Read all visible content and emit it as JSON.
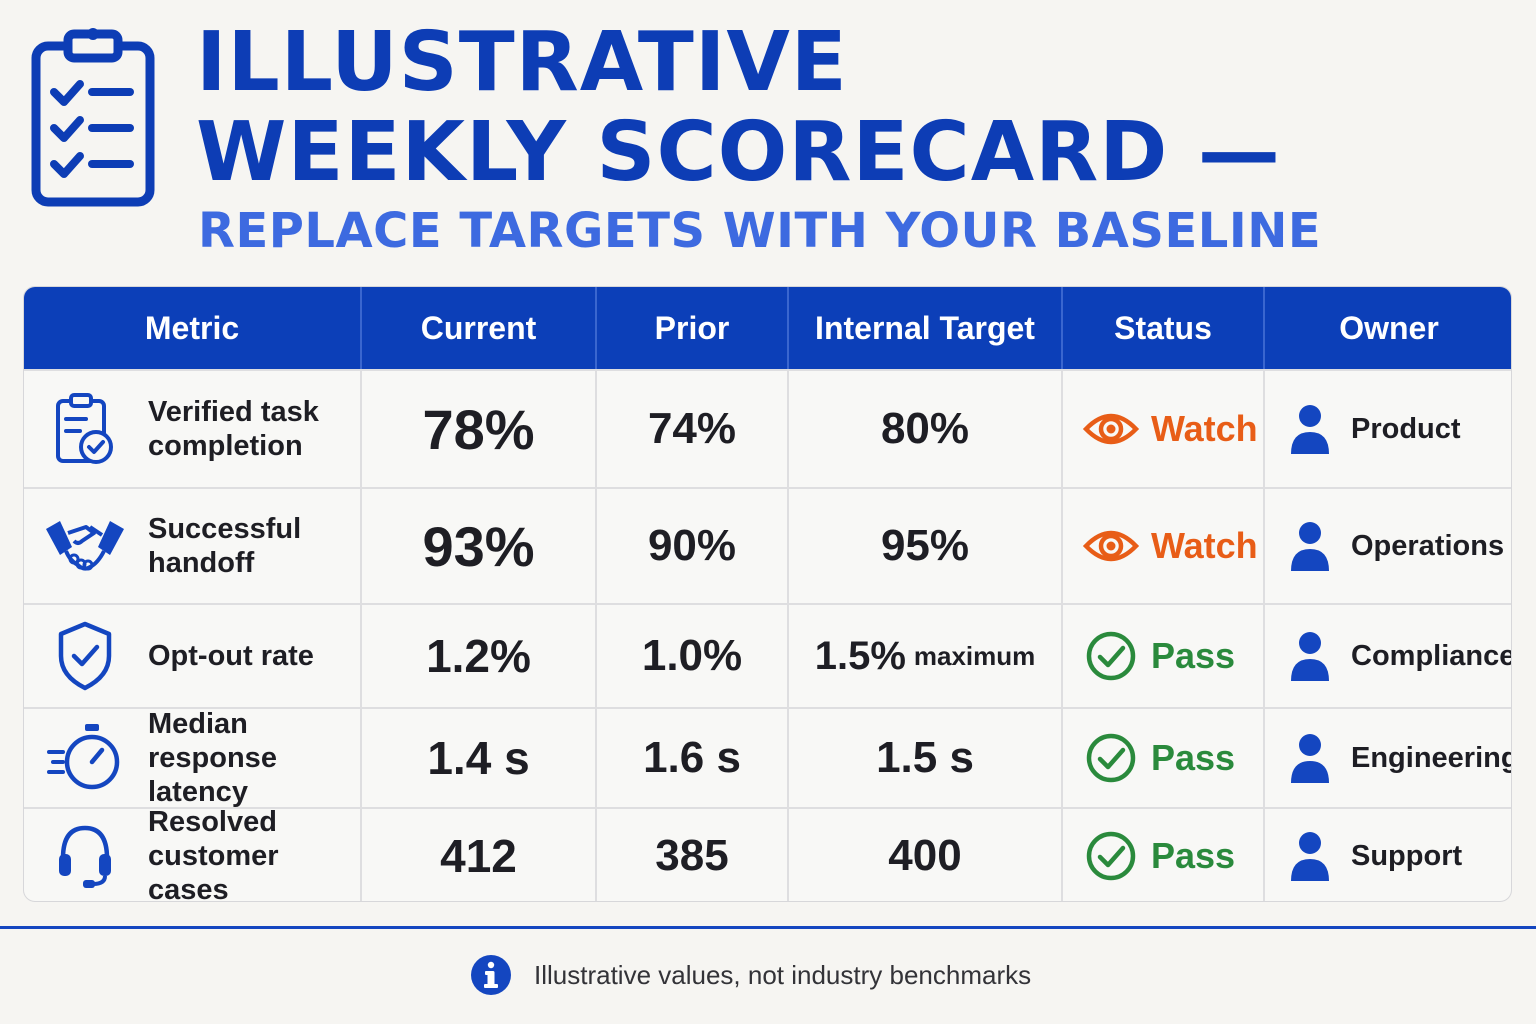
{
  "header": {
    "title_line1": "ILLUSTRATIVE",
    "title_line2": "WEEKLY SCORECARD —",
    "subtitle": "REPLACE TARGETS WITH YOUR BASELINE",
    "logo_icon": "clipboard-checklist-icon"
  },
  "table": {
    "columns": [
      "Metric",
      "Current",
      "Prior",
      "Internal Target",
      "Status",
      "Owner"
    ],
    "rows": [
      {
        "metric": "Verified task completion",
        "icon": "clipboard-check-icon",
        "current": "78%",
        "prior": "74%",
        "target": "80%",
        "target_suffix": "",
        "status": "Watch",
        "status_icon": "eye-icon",
        "owner": "Product"
      },
      {
        "metric": "Successful handoff",
        "icon": "handshake-icon",
        "current": "93%",
        "prior": "90%",
        "target": "95%",
        "target_suffix": "",
        "status": "Watch",
        "status_icon": "eye-icon",
        "owner": "Operations"
      },
      {
        "metric": "Opt-out rate",
        "icon": "shield-check-icon",
        "current": "1.2%",
        "prior": "1.0%",
        "target": "1.5%",
        "target_suffix": "maximum",
        "status": "Pass",
        "status_icon": "check-circle-icon",
        "owner": "Compliance"
      },
      {
        "metric": "Median response latency",
        "icon": "stopwatch-icon",
        "current": "1.4 s",
        "prior": "1.6 s",
        "target": "1.5 s",
        "target_suffix": "",
        "status": "Pass",
        "status_icon": "check-circle-icon",
        "owner": "Engineering"
      },
      {
        "metric": "Resolved customer cases",
        "icon": "headset-icon",
        "current": "412",
        "prior": "385",
        "target": "400",
        "target_suffix": "",
        "status": "Pass",
        "status_icon": "check-circle-icon",
        "owner": "Support"
      }
    ]
  },
  "footer": {
    "note": "Illustrative values, not industry benchmarks",
    "icon": "info-icon"
  },
  "colors": {
    "primary_blue": "#0c3fb8",
    "subtitle_blue": "#3d6ae0",
    "watch_orange": "#e85d17",
    "pass_green": "#2a8a3c",
    "background": "#f6f5f2"
  }
}
